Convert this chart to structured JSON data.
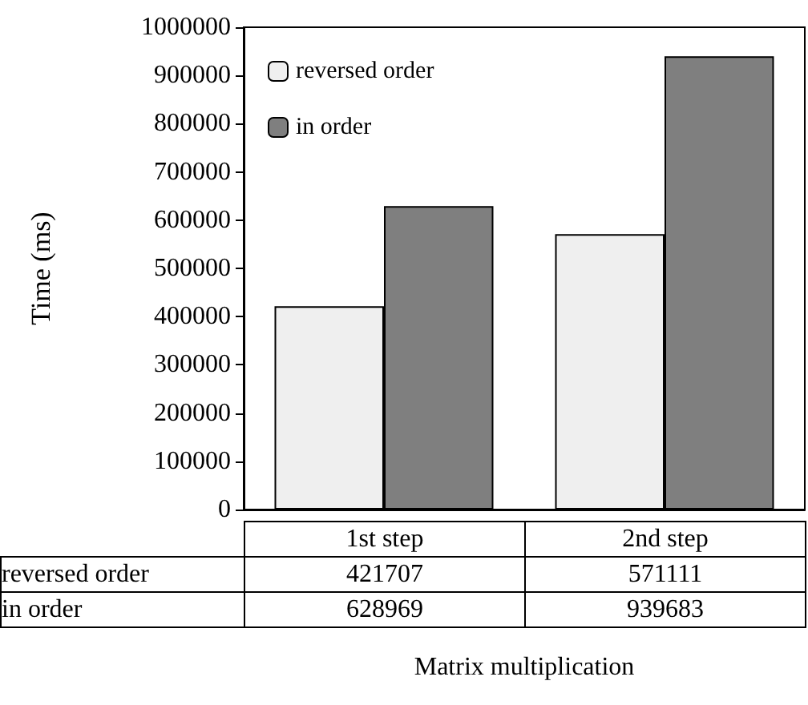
{
  "chart_data": {
    "type": "bar",
    "ylabel": "Time (ms)",
    "xlabel": "Matrix multiplication",
    "categories": [
      "1st step",
      "2nd step"
    ],
    "series": [
      {
        "name": "reversed order",
        "color": "#efefef",
        "values": [
          421707,
          571111
        ]
      },
      {
        "name": "in order",
        "color": "#7f7f7f",
        "values": [
          628969,
          939683
        ]
      }
    ],
    "ylim": [
      0,
      1000000
    ],
    "yticks": [
      0,
      100000,
      200000,
      300000,
      400000,
      500000,
      600000,
      700000,
      800000,
      900000,
      1000000
    ],
    "grid": false,
    "legend": "top left",
    "data_labels": true
  }
}
